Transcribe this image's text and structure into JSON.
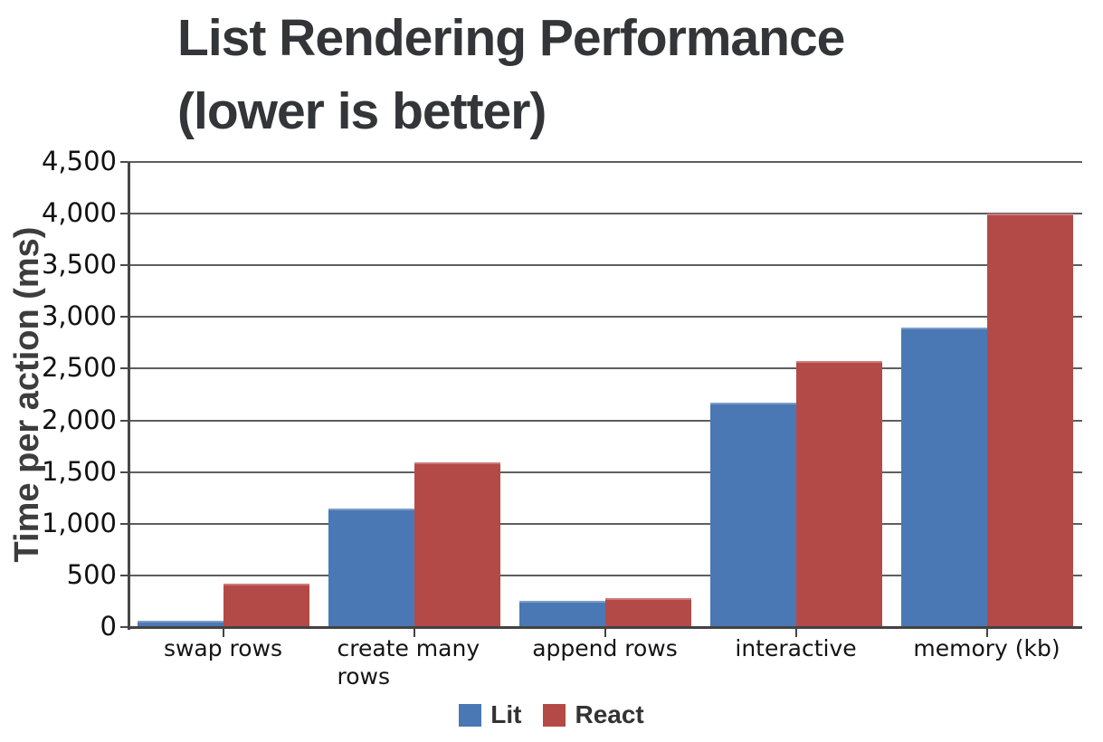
{
  "title": {
    "line1": "List Rendering Performance",
    "line2": "(lower is better)"
  },
  "chart_data": {
    "type": "bar",
    "title": "List Rendering Performance (lower is better)",
    "xlabel": "",
    "ylabel": "Time per action (ms)",
    "ylim": [
      0,
      4500
    ],
    "ytick_interval": 500,
    "ytick_labels": [
      "0",
      "500",
      "1,000",
      "1,500",
      "2,000",
      "2,500",
      "3,000",
      "3,500",
      "4,000",
      "4,500"
    ],
    "grid": true,
    "legend_position": "bottom",
    "categories": [
      "swap rows",
      "create many rows",
      "append rows",
      "interactive",
      "memory (kb)"
    ],
    "series": [
      {
        "name": "Lit",
        "color": "#4a78b4",
        "values": [
          60,
          1150,
          250,
          2170,
          2900
        ]
      },
      {
        "name": "React",
        "color": "#b44a47",
        "values": [
          420,
          1590,
          280,
          2570,
          4000
        ]
      }
    ]
  }
}
